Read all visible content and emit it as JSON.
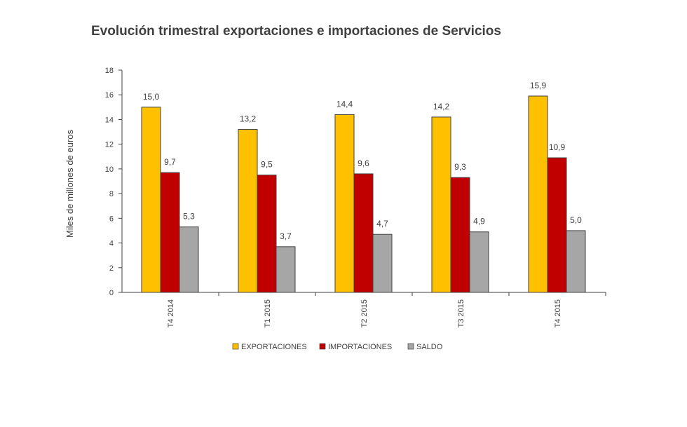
{
  "chart_data": {
    "type": "bar",
    "title": "Evolución trimestral exportaciones e importaciones de Servicios",
    "ylabel": "Miles de millones de euros",
    "xlabel": "",
    "ylim": [
      0,
      18
    ],
    "yticks": [
      "0",
      "2",
      "4",
      "6",
      "8",
      "10",
      "12",
      "14",
      "16",
      "18"
    ],
    "categories": [
      "T4 2014",
      "T1 2015",
      "T2 2015",
      "T3 2015",
      "T4 2015"
    ],
    "series": [
      {
        "name": "EXPORTACIONES",
        "color": "#FFC000",
        "values": [
          15.0,
          13.2,
          14.4,
          14.2,
          15.9
        ],
        "labels": [
          "15,0",
          "13,2",
          "14,4",
          "14,2",
          "15,9"
        ]
      },
      {
        "name": "IMPORTACIONES",
        "color": "#C00000",
        "values": [
          9.7,
          9.5,
          9.6,
          9.3,
          10.9
        ],
        "labels": [
          "9,7",
          "9,5",
          "9,6",
          "9,3",
          "10,9"
        ]
      },
      {
        "name": "SALDO",
        "color": "#A6A6A6",
        "values": [
          5.3,
          3.7,
          4.7,
          4.9,
          5.0
        ],
        "labels": [
          "5,3",
          "3,7",
          "4,7",
          "4,9",
          "5,0"
        ]
      }
    ],
    "legend_position": "bottom",
    "grid": false
  }
}
